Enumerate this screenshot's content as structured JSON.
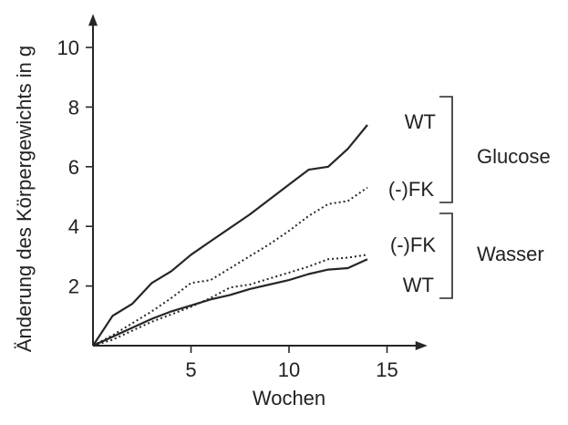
{
  "chart_data": {
    "type": "line",
    "title": "",
    "xlabel": "Wochen",
    "ylabel": "Änderung des Körpergewichts in g",
    "xlim": [
      0,
      16.5
    ],
    "ylim": [
      0,
      11
    ],
    "xticks": [
      5,
      10,
      15
    ],
    "yticks": [
      2,
      4,
      6,
      8,
      10
    ],
    "xtick_labels": [
      "5",
      "10",
      "15"
    ],
    "ytick_labels": [
      "2",
      "4",
      "6",
      "8",
      "10"
    ],
    "grid": false,
    "legend": "none; series labelled at right with brackets",
    "colors": {
      "solid": "#262626",
      "dotted": "#262626",
      "axis": "#262626"
    },
    "series": [
      {
        "label": "WT",
        "group": "Glucose",
        "style": "solid",
        "x": [
          0,
          1,
          2,
          3,
          4,
          5,
          6,
          7,
          8,
          9,
          10,
          11,
          12,
          13,
          14
        ],
        "y": [
          0,
          1.0,
          1.4,
          2.1,
          2.5,
          3.05,
          3.5,
          3.95,
          4.4,
          4.9,
          5.4,
          5.9,
          6.0,
          6.6,
          7.4
        ]
      },
      {
        "label": "(-)FK",
        "group": "Glucose",
        "style": "dotted",
        "x": [
          0,
          1,
          2,
          3,
          4,
          5,
          6,
          7,
          8,
          9,
          10,
          11,
          12,
          13,
          14
        ],
        "y": [
          0,
          0.35,
          0.75,
          1.15,
          1.6,
          2.1,
          2.2,
          2.6,
          3.0,
          3.4,
          3.85,
          4.35,
          4.75,
          4.85,
          5.3
        ]
      },
      {
        "label": "(-)FK",
        "group": "Wasser",
        "style": "dotted",
        "x": [
          0,
          1,
          2,
          3,
          4,
          5,
          6,
          7,
          8,
          9,
          10,
          11,
          12,
          13,
          14
        ],
        "y": [
          0,
          0.2,
          0.5,
          0.8,
          1.05,
          1.3,
          1.6,
          1.95,
          2.05,
          2.25,
          2.45,
          2.65,
          2.9,
          2.95,
          3.05
        ]
      },
      {
        "label": "WT",
        "group": "Wasser",
        "style": "solid",
        "x": [
          0,
          1,
          2,
          3,
          4,
          5,
          6,
          7,
          8,
          9,
          10,
          11,
          12,
          13,
          14
        ],
        "y": [
          0,
          0.3,
          0.6,
          0.9,
          1.15,
          1.35,
          1.55,
          1.7,
          1.9,
          2.05,
          2.2,
          2.4,
          2.55,
          2.6,
          2.9
        ]
      }
    ],
    "groups": [
      {
        "label": "Glucose",
        "members": [
          "WT",
          "(-)FK"
        ]
      },
      {
        "label": "Wasser",
        "members": [
          "(-)FK",
          "WT"
        ]
      }
    ]
  }
}
